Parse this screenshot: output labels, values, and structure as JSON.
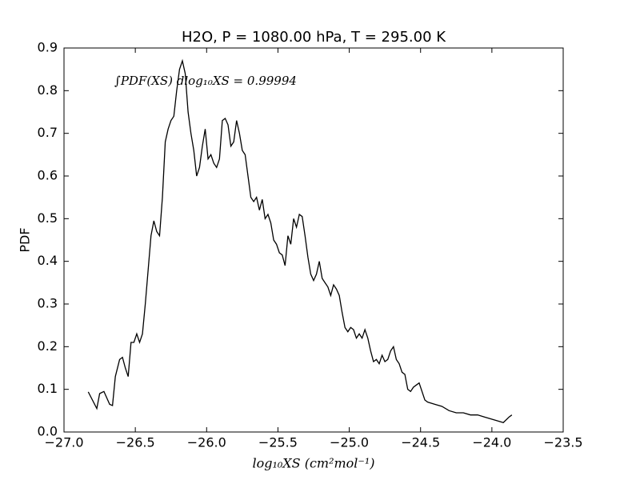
{
  "chart_data": {
    "type": "line",
    "title": "H2O, P = 1080.00 hPa, T = 295.00 K",
    "xlabel": "log₁₀XS (cm²mol⁻¹)",
    "ylabel": "PDF",
    "annotation": "∫PDF(XS) dlog₁₀XS = 0.99994",
    "xlim": [
      -27,
      -23.5
    ],
    "ylim": [
      0,
      0.9
    ],
    "xticks": [
      {
        "value": -27,
        "label": "−27.0"
      },
      {
        "value": -26.5,
        "label": "−26.5"
      },
      {
        "value": -26,
        "label": "−26.0"
      },
      {
        "value": -25.5,
        "label": "−25.5"
      },
      {
        "value": -25,
        "label": "−25.0"
      },
      {
        "value": -24.5,
        "label": "−24.5"
      },
      {
        "value": -24,
        "label": "−24.0"
      },
      {
        "value": -23.5,
        "label": "−23.5"
      }
    ],
    "yticks": [
      {
        "value": 0,
        "label": "0.0"
      },
      0.1,
      0.2,
      0.3,
      0.4,
      0.5,
      0.6,
      0.7,
      0.8,
      0.9
    ],
    "series": [
      {
        "color": "#000000",
        "x": [
          -26.83,
          -26.77,
          -26.75,
          -26.72,
          -26.7,
          -26.68,
          -26.66,
          -26.64,
          -26.61,
          -26.59,
          -26.57,
          -26.55,
          -26.53,
          -26.51,
          -26.49,
          -26.47,
          -26.45,
          -26.43,
          -26.41,
          -26.39,
          -26.37,
          -26.35,
          -26.33,
          -26.31,
          -26.29,
          -26.27,
          -26.25,
          -26.23,
          -26.21,
          -26.19,
          -26.17,
          -26.15,
          -26.13,
          -26.11,
          -26.09,
          -26.07,
          -26.05,
          -26.03,
          -26.01,
          -25.99,
          -25.97,
          -25.95,
          -25.93,
          -25.91,
          -25.89,
          -25.87,
          -25.85,
          -25.83,
          -25.81,
          -25.79,
          -25.77,
          -25.75,
          -25.73,
          -25.71,
          -25.69,
          -25.67,
          -25.65,
          -25.63,
          -25.61,
          -25.59,
          -25.57,
          -25.55,
          -25.53,
          -25.51,
          -25.49,
          -25.47,
          -25.45,
          -25.43,
          -25.41,
          -25.39,
          -25.37,
          -25.35,
          -25.33,
          -25.31,
          -25.29,
          -25.27,
          -25.25,
          -25.23,
          -25.21,
          -25.19,
          -25.17,
          -25.15,
          -25.13,
          -25.11,
          -25.09,
          -25.07,
          -25.05,
          -25.03,
          -25.01,
          -24.99,
          -24.97,
          -24.95,
          -24.93,
          -24.91,
          -24.89,
          -24.87,
          -24.85,
          -24.83,
          -24.81,
          -24.79,
          -24.77,
          -24.75,
          -24.73,
          -24.71,
          -24.69,
          -24.67,
          -24.65,
          -24.63,
          -24.61,
          -24.59,
          -24.57,
          -24.55,
          -24.53,
          -24.51,
          -24.49,
          -24.47,
          -24.45,
          -24.4,
          -24.35,
          -24.3,
          -24.25,
          -24.2,
          -24.15,
          -24.1,
          -24.05,
          -24.0,
          -23.95,
          -23.92,
          -23.88,
          -23.86
        ],
        "values": [
          0.094,
          0.055,
          0.09,
          0.095,
          0.08,
          0.065,
          0.062,
          0.13,
          0.17,
          0.175,
          0.15,
          0.13,
          0.21,
          0.21,
          0.23,
          0.21,
          0.23,
          0.3,
          0.38,
          0.46,
          0.495,
          0.47,
          0.46,
          0.55,
          0.68,
          0.71,
          0.73,
          0.74,
          0.8,
          0.85,
          0.87,
          0.84,
          0.75,
          0.7,
          0.66,
          0.6,
          0.62,
          0.67,
          0.71,
          0.64,
          0.65,
          0.63,
          0.62,
          0.64,
          0.73,
          0.735,
          0.72,
          0.67,
          0.68,
          0.73,
          0.7,
          0.66,
          0.65,
          0.6,
          0.55,
          0.54,
          0.55,
          0.52,
          0.545,
          0.5,
          0.51,
          0.49,
          0.45,
          0.44,
          0.42,
          0.415,
          0.39,
          0.46,
          0.44,
          0.5,
          0.48,
          0.51,
          0.505,
          0.46,
          0.41,
          0.37,
          0.355,
          0.37,
          0.4,
          0.36,
          0.35,
          0.34,
          0.32,
          0.345,
          0.335,
          0.32,
          0.28,
          0.245,
          0.235,
          0.245,
          0.24,
          0.22,
          0.23,
          0.22,
          0.24,
          0.22,
          0.19,
          0.165,
          0.17,
          0.16,
          0.18,
          0.165,
          0.17,
          0.19,
          0.2,
          0.17,
          0.16,
          0.14,
          0.135,
          0.1,
          0.095,
          0.105,
          0.11,
          0.115,
          0.095,
          0.075,
          0.07,
          0.065,
          0.06,
          0.05,
          0.045,
          0.045,
          0.04,
          0.04,
          0.035,
          0.03,
          0.025,
          0.022,
          0.035,
          0.04
        ]
      }
    ]
  }
}
